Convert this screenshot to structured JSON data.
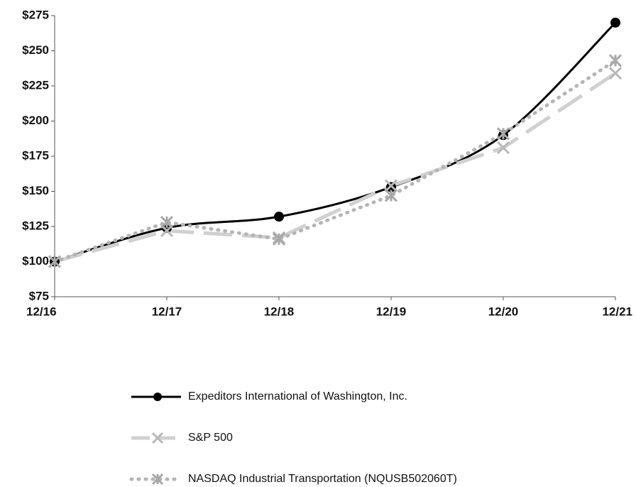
{
  "chart_data": {
    "type": "line",
    "categories": [
      "12/16",
      "12/17",
      "12/18",
      "12/19",
      "12/20",
      "12/21"
    ],
    "series": [
      {
        "name": "Expeditors International of Washington, Inc.",
        "color": "#000000",
        "values": [
          100,
          124,
          132,
          153,
          190,
          270
        ]
      },
      {
        "name": "S&P 500",
        "color": "#d0d0d0",
        "values": [
          100,
          122,
          117,
          154,
          181,
          234
        ]
      },
      {
        "name": "NASDAQ Industrial Transportation (NQUSB502060T)",
        "color": "#b4b4b4",
        "values": [
          100,
          128,
          116,
          147,
          191,
          243
        ]
      }
    ],
    "ylim": [
      75,
      275
    ],
    "yticks": [
      {
        "value": 75,
        "label": "$75"
      },
      {
        "value": 100,
        "label": "$100"
      },
      {
        "value": 125,
        "label": "$125"
      },
      {
        "value": 150,
        "label": "$150"
      },
      {
        "value": 175,
        "label": "$175"
      },
      {
        "value": 200,
        "label": "$200"
      },
      {
        "value": 225,
        "label": "$225"
      },
      {
        "value": 250,
        "label": "$250"
      },
      {
        "value": 275,
        "label": "$275"
      }
    ],
    "grid": false,
    "legend": "bottom"
  }
}
